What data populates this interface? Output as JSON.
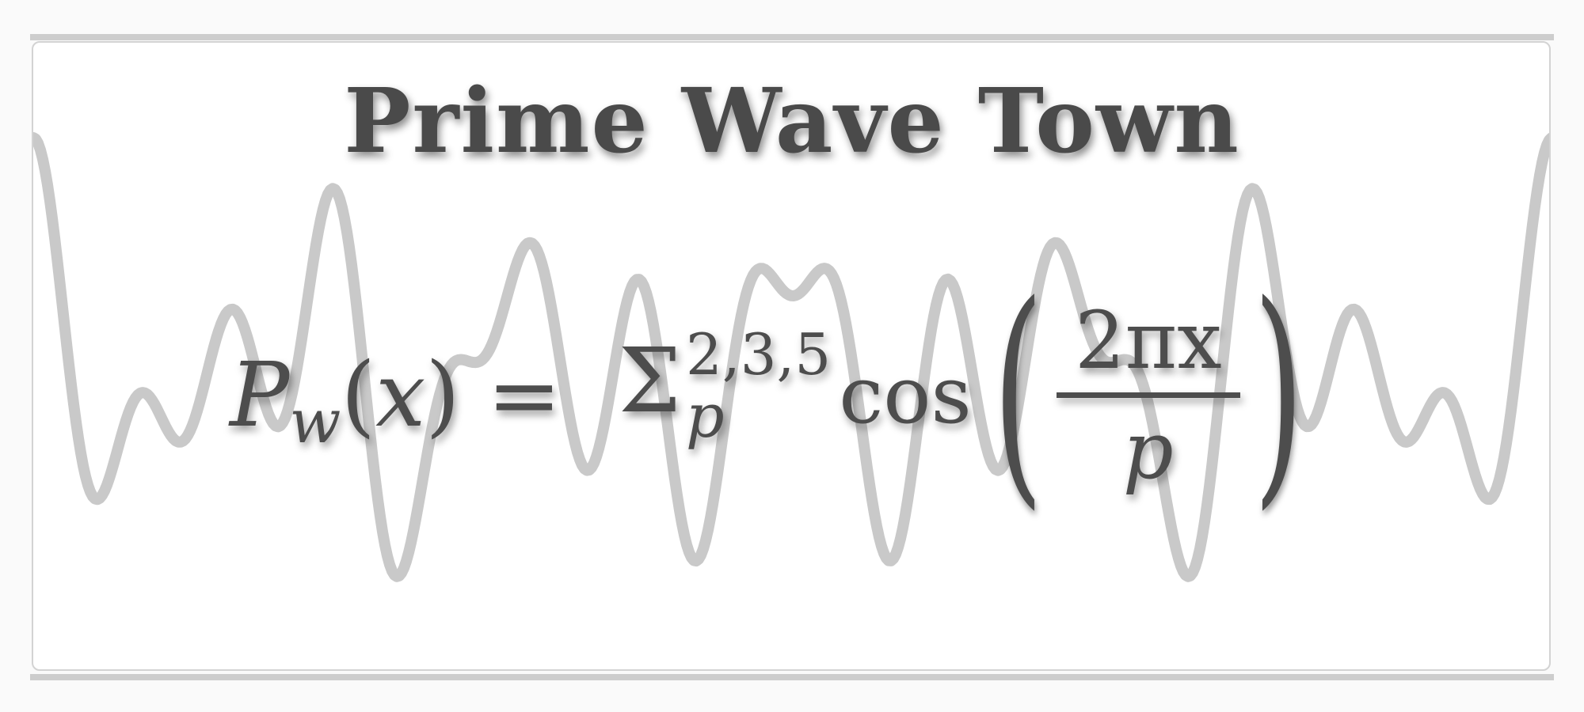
{
  "title": "Prime Wave Town",
  "formula": {
    "P": "P",
    "w": "w",
    "open_paren": "(",
    "x": "x",
    "close_paren": ")",
    "equals": "=",
    "sigma": "Σ",
    "superscript": "2,3,5",
    "subscript": "p",
    "cos": "cos",
    "big_open_paren": "(",
    "numerator": "2πx",
    "denominator": "p",
    "big_close_paren": ")"
  },
  "wave": {
    "color": "#c9c9c9",
    "primes": [
      2,
      3,
      5
    ]
  }
}
